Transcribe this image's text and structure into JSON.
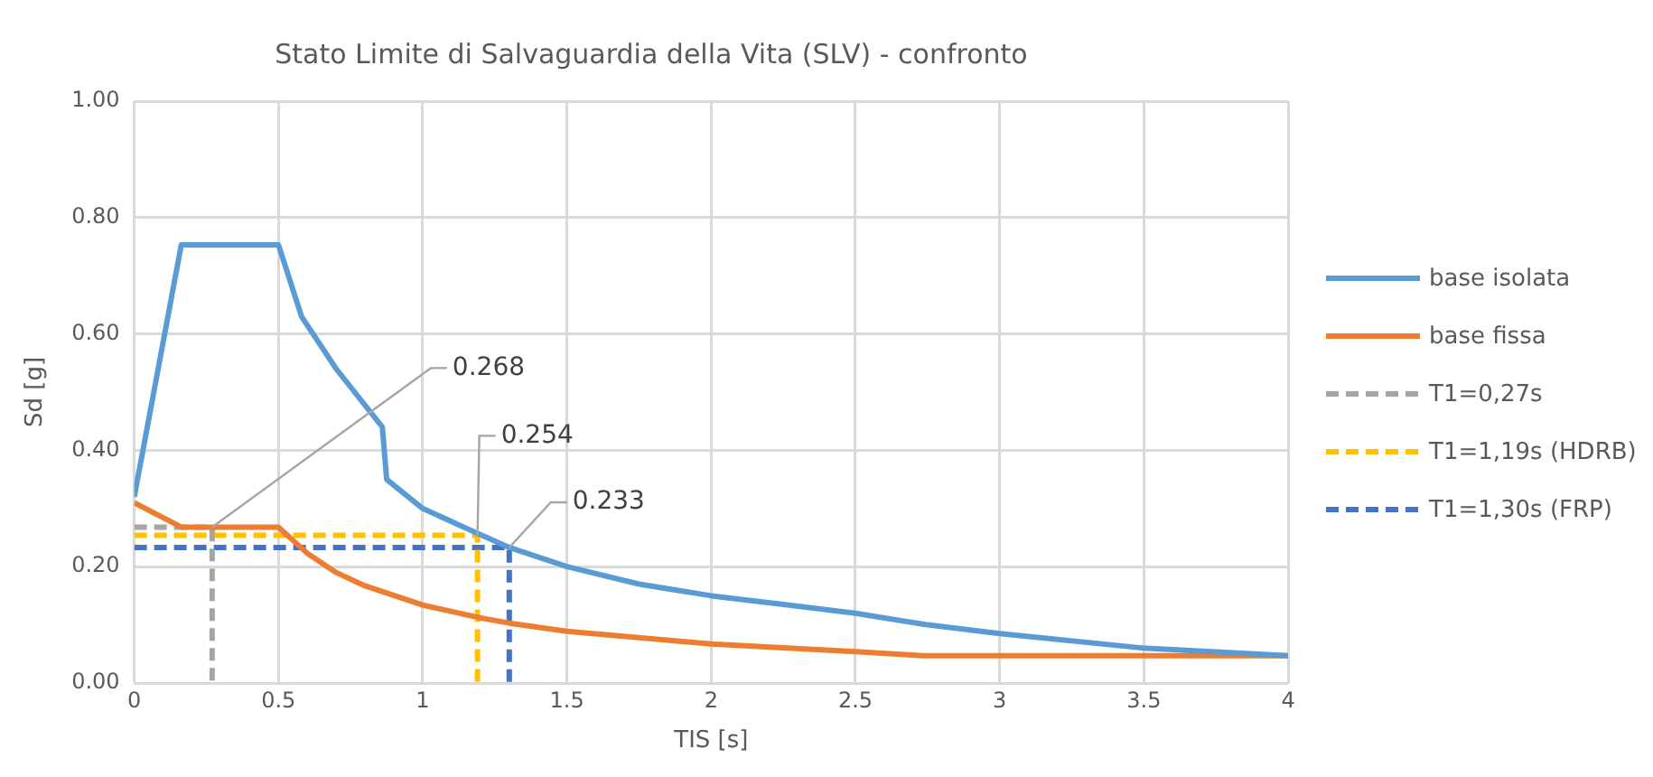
{
  "chart_data": {
    "type": "line",
    "title": "Stato Limite di Salvaguardia della Vita (SLV) - confronto",
    "xlabel": "TIS [s]",
    "ylabel": "Sd [g]",
    "xlim": [
      0,
      4
    ],
    "xticks": [
      0,
      0.5,
      1,
      1.5,
      2,
      2.5,
      3,
      3.5,
      4
    ],
    "ylim": [
      0,
      1
    ],
    "yticks": [
      {
        "value": 0,
        "label": "0.00"
      },
      {
        "value": 0.2,
        "label": "0.20"
      },
      {
        "value": 0.4,
        "label": "0.40"
      },
      {
        "value": 0.6,
        "label": "0.60"
      },
      {
        "value": 0.8,
        "label": "0.80"
      },
      {
        "value": 1,
        "label": "1.00"
      }
    ],
    "grid": true,
    "legend": "right",
    "marker": "none",
    "series": [
      {
        "name": "base isolata",
        "color": "#5b9bd5",
        "line_style": "solid",
        "x": [
          0,
          0.163,
          0.5,
          0.58,
          0.7,
          0.86,
          0.875,
          1,
          1.2,
          1.3,
          1.5,
          1.75,
          2,
          2.25,
          2.5,
          2.75,
          3,
          3.5,
          4
        ],
        "values": [
          0.32,
          0.753,
          0.753,
          0.63,
          0.54,
          0.44,
          0.35,
          0.3,
          0.255,
          0.233,
          0.2,
          0.17,
          0.15,
          0.135,
          0.12,
          0.1,
          0.085,
          0.06,
          0.047
        ]
      },
      {
        "name": "base fissa",
        "color": "#ed7d31",
        "line_style": "solid",
        "x": [
          0,
          0.163,
          0.5,
          0.6,
          0.7,
          0.8,
          1,
          1.2,
          1.3,
          1.5,
          2,
          2.5,
          2.73,
          4
        ],
        "values": [
          0.31,
          0.268,
          0.268,
          0.223,
          0.19,
          0.167,
          0.134,
          0.112,
          0.103,
          0.089,
          0.067,
          0.054,
          0.047,
          0.047
        ]
      },
      {
        "name": "T1=0,27s",
        "color": "#a5a5a5",
        "line_style": "dashed",
        "x": [
          0,
          0.27,
          0.27
        ],
        "values": [
          0.268,
          0.268,
          0
        ]
      },
      {
        "name": "T1=1,19s (HDRB)",
        "color": "#ffc000",
        "line_style": "dashed",
        "x": [
          0,
          1.19,
          1.19
        ],
        "values": [
          0.254,
          0.254,
          0
        ]
      },
      {
        "name": "T1=1,30s (FRP)",
        "color": "#4472c4",
        "line_style": "dashed",
        "x": [
          0,
          1.3,
          1.3
        ],
        "values": [
          0.233,
          0.233,
          0
        ]
      }
    ],
    "annotations": [
      {
        "text": "0.268",
        "x": 0.27,
        "y": 0.268
      },
      {
        "text": "0.254",
        "x": 1.19,
        "y": 0.254
      },
      {
        "text": "0.233",
        "x": 1.3,
        "y": 0.233
      }
    ]
  }
}
